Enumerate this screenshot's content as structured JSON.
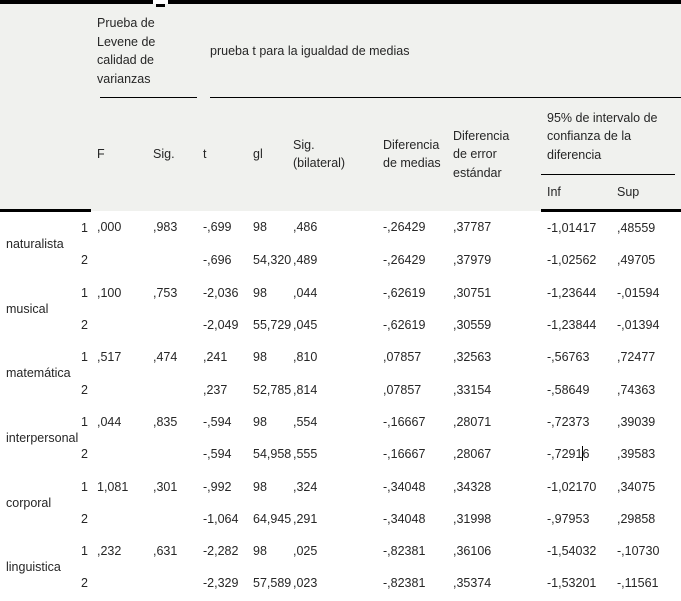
{
  "header": {
    "levene_title": "Prueba de Levene de calidad de varianzas",
    "ttest_title": "prueba t para la igualdad de medias",
    "cols": {
      "f": "F",
      "sig": "Sig.",
      "t": "t",
      "gl": "gl",
      "sig_bilateral": "Sig. (bilateral)",
      "dif_medias": "Diferencia de medias",
      "dif_error": "Diferencia de error estándar",
      "ci": "95% de intervalo de confianza de la diferencia",
      "inf": "Inf",
      "sup": "Sup"
    }
  },
  "groups": [
    {
      "label": "naturalista",
      "rows": [
        [
          "1",
          ",000",
          ",983",
          "-,699",
          "98",
          ",486",
          "-,26429",
          ",37787",
          "-1,01417",
          ",48559"
        ],
        [
          "2",
          "",
          "",
          "-,696",
          "54,320",
          ",489",
          "-,26429",
          ",37979",
          "-1,02562",
          ",49705"
        ]
      ]
    },
    {
      "label": "musical",
      "rows": [
        [
          "1",
          ",100",
          ",753",
          "-2,036",
          "98",
          ",044",
          "-,62619",
          ",30751",
          "-1,23644",
          "-,01594"
        ],
        [
          "2",
          "",
          "",
          "-2,049",
          "55,729",
          ",045",
          "-,62619",
          ",30559",
          "-1,23844",
          "-,01394"
        ]
      ]
    },
    {
      "label": "matemática",
      "rows": [
        [
          "1",
          ",517",
          ",474",
          ",241",
          "98",
          ",810",
          ",07857",
          ",32563",
          "-,56763",
          ",72477"
        ],
        [
          "2",
          "",
          "",
          ",237",
          "52,785",
          ",814",
          ",07857",
          ",33154",
          "-,58649",
          ",74363"
        ]
      ]
    },
    {
      "label": "interpersonal",
      "rows": [
        [
          "1",
          ",044",
          ",835",
          "-,594",
          "98",
          ",554",
          "-,16667",
          ",28071",
          "-,72373",
          ",39039"
        ],
        [
          "2",
          "",
          "",
          "-,594",
          "54,958",
          ",555",
          "-,16667",
          ",28067",
          "-,72916",
          ",39583"
        ]
      ]
    },
    {
      "label": "corporal",
      "rows": [
        [
          "1",
          "1,081",
          ",301",
          "-,992",
          "98",
          ",324",
          "-,34048",
          ",34328",
          "-1,02170",
          ",34075"
        ],
        [
          "2",
          "",
          "",
          "-1,064",
          "64,945",
          ",291",
          "-,34048",
          ",31998",
          "-,97953",
          ",29858"
        ]
      ]
    },
    {
      "label": "linguistica",
      "rows": [
        [
          "1",
          ",232",
          ",631",
          "-2,282",
          "98",
          ",025",
          "-,82381",
          ",36106",
          "-1,54032",
          "-,10730"
        ],
        [
          "2",
          "",
          "",
          "-2,329",
          "57,589",
          ",023",
          "-,82381",
          ",35374",
          "-1,53201",
          "-,11561"
        ]
      ]
    }
  ],
  "text_cursor": {
    "group_index": 3,
    "row_index": 1,
    "cell_index": 8,
    "char_index": 6
  },
  "colors": {
    "header_bg": "#f0f1ee",
    "border": "#000000",
    "text": "#262626"
  }
}
